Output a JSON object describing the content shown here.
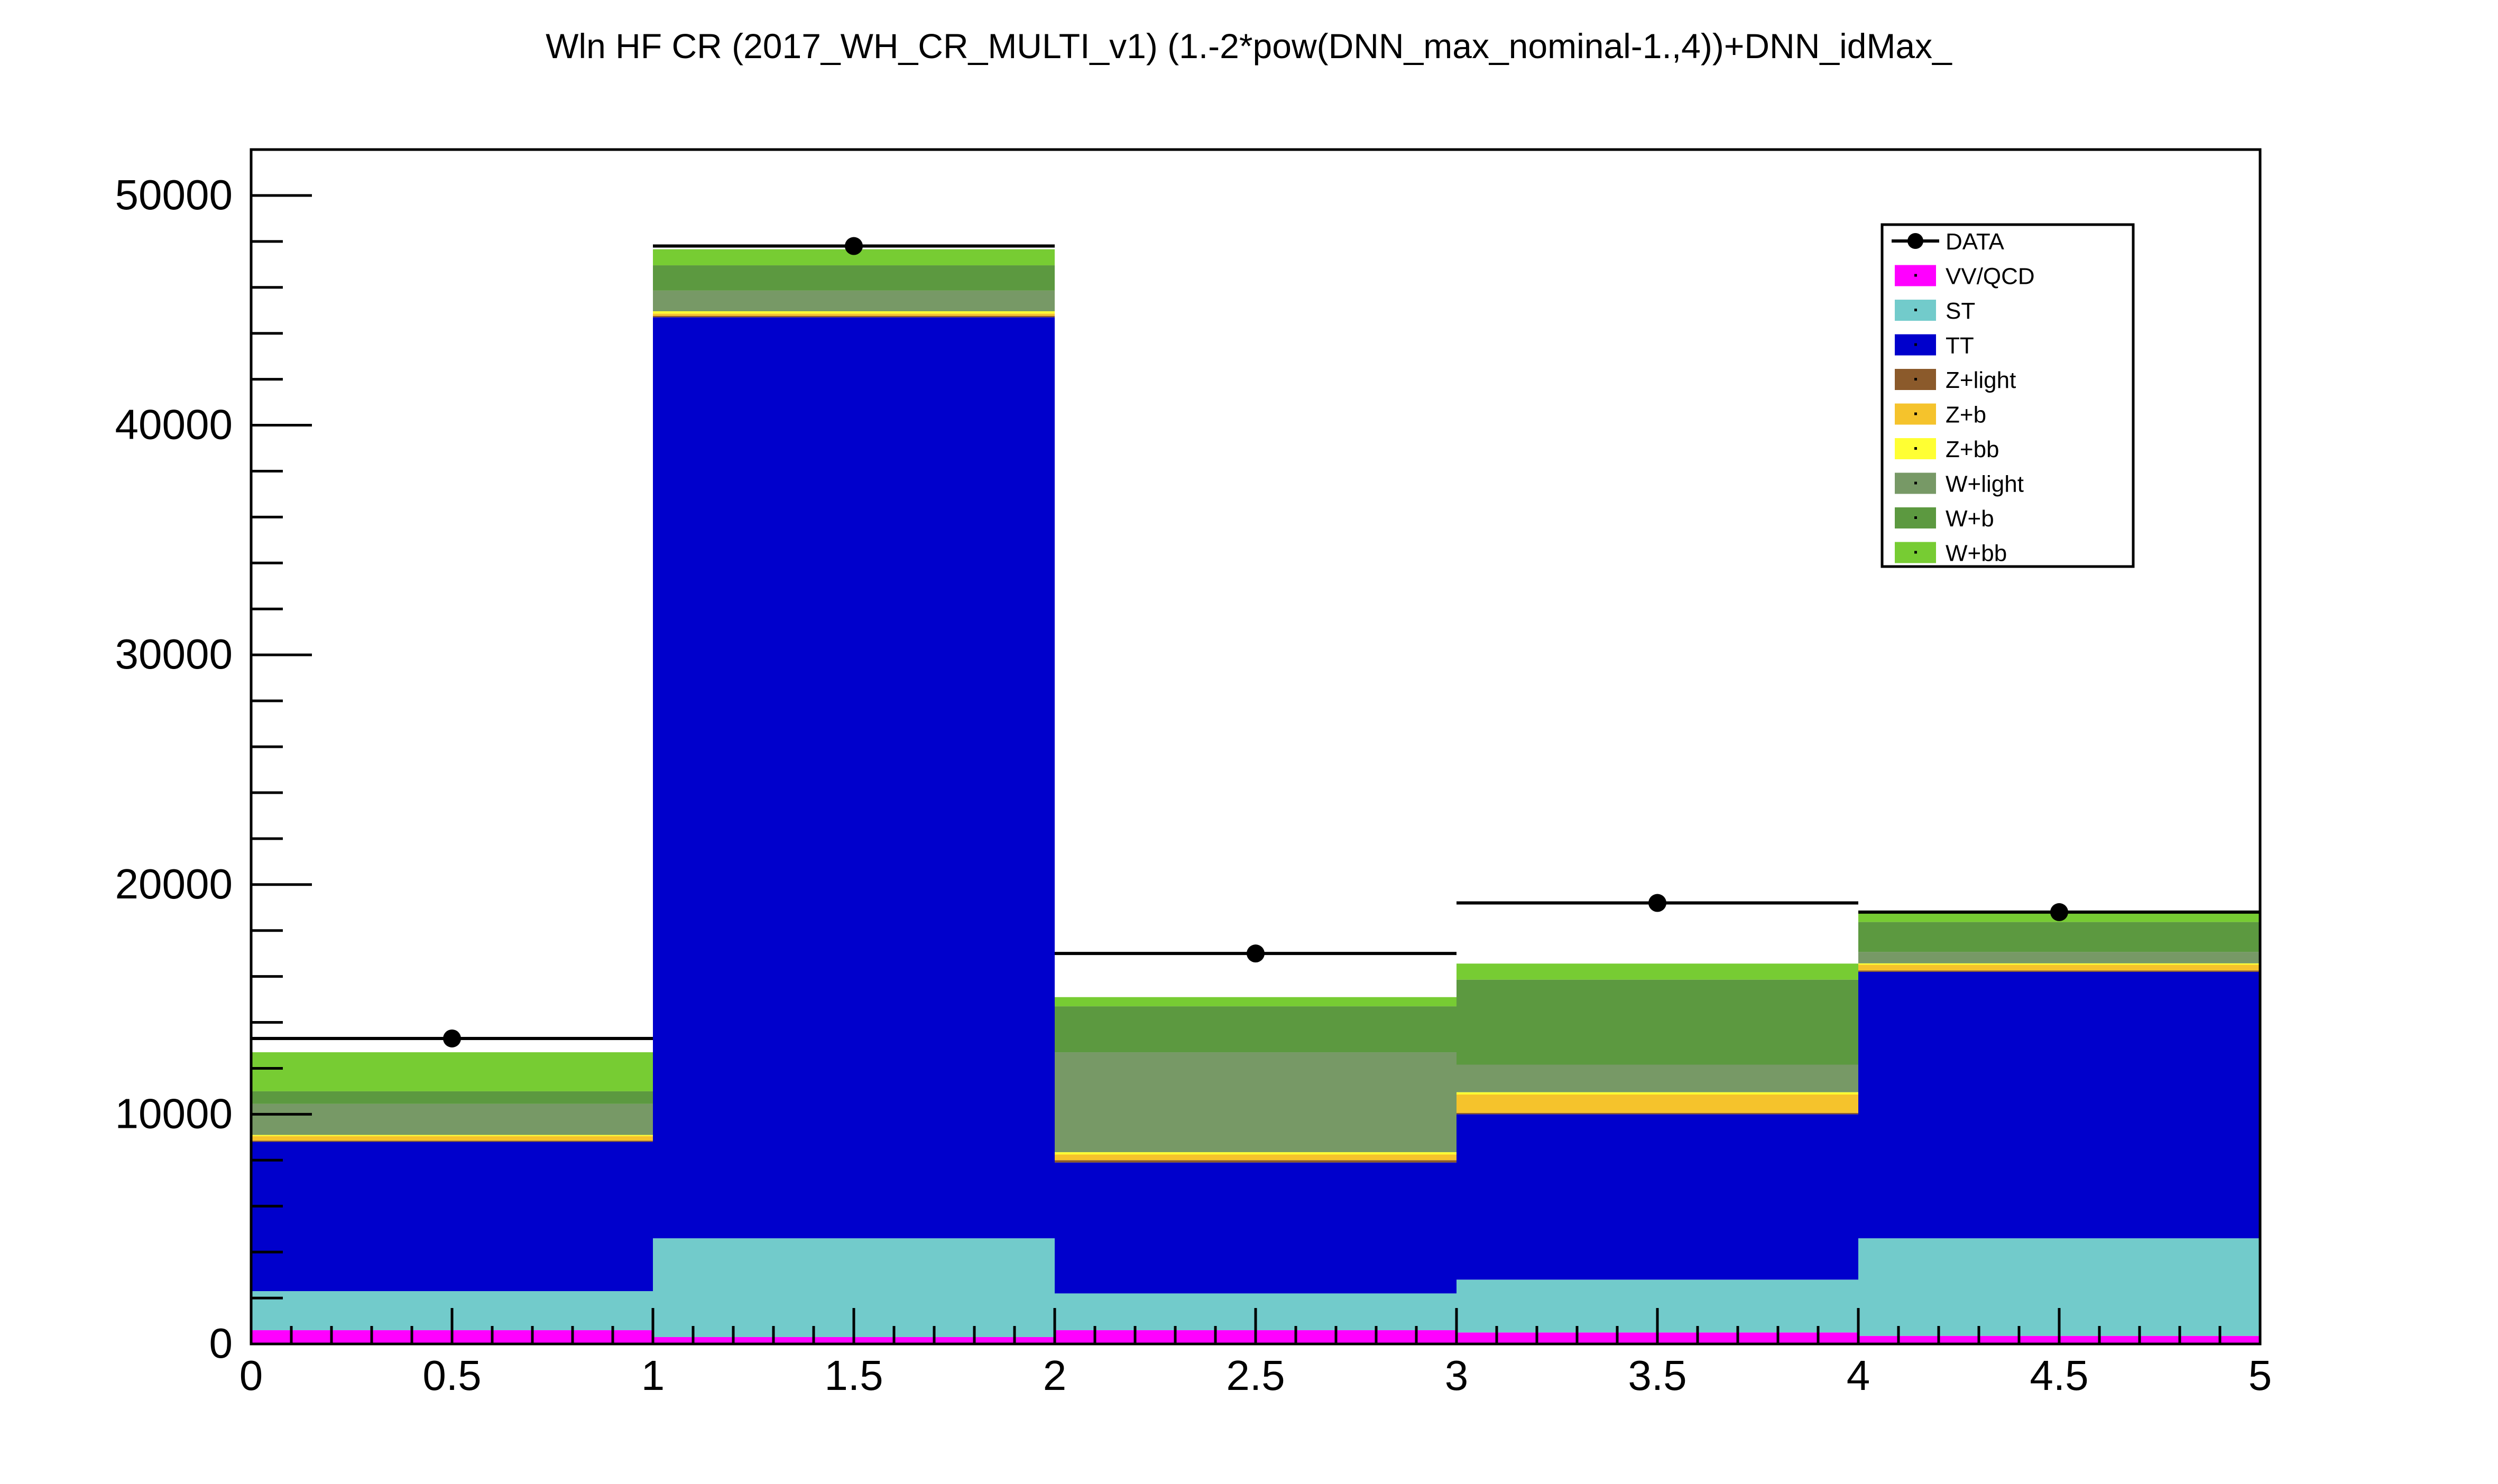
{
  "chart_data": {
    "type": "bar",
    "stacked": true,
    "title": "Wln HF CR (2017_WH_CR_MULTI_v1)  (1.-2*pow(DNN_max_nominal-1.,4))+DNN_idMax_",
    "xlabel": "",
    "ylabel": "",
    "xlim": [
      0,
      5
    ],
    "ylim": [
      0,
      52000
    ],
    "x_ticks": [
      "0",
      "0.5",
      "1",
      "1.5",
      "2",
      "2.5",
      "3",
      "3.5",
      "4",
      "4.5",
      "5"
    ],
    "y_ticks": [
      "0",
      "10000",
      "20000",
      "30000",
      "40000",
      "50000"
    ],
    "grid": false,
    "legend_position": "top-right",
    "bin_edges": [
      0,
      1,
      2,
      3,
      4,
      5
    ],
    "series": [
      {
        "name": "VV/QCD",
        "color": "#ff00ff",
        "values": [
          600,
          300,
          600,
          500,
          350
        ]
      },
      {
        "name": "ST",
        "color": "#72cbcb",
        "values": [
          1700,
          4300,
          1600,
          2300,
          4250
        ]
      },
      {
        "name": "TT",
        "color": "#0000cc",
        "values": [
          6500,
          40100,
          5700,
          7200,
          11600
        ]
      },
      {
        "name": "Z+light",
        "color": "#8b5a2b",
        "values": [
          50,
          60,
          100,
          60,
          60
        ]
      },
      {
        "name": "Z+b",
        "color": "#f5c32c",
        "values": [
          200,
          100,
          250,
          800,
          250
        ]
      },
      {
        "name": "Z+bb",
        "color": "#ffff33",
        "values": [
          50,
          100,
          100,
          100,
          60
        ]
      },
      {
        "name": "W+light",
        "color": "#779966",
        "values": [
          1350,
          900,
          4350,
          1200,
          500
        ]
      },
      {
        "name": "W+b",
        "color": "#5c9940",
        "values": [
          550,
          1100,
          2000,
          3700,
          1300
        ]
      },
      {
        "name": "W+bb",
        "color": "#77cc33",
        "values": [
          1700,
          700,
          400,
          700,
          500
        ]
      }
    ],
    "data": {
      "name": "DATA",
      "color": "#000000",
      "x": [
        0.5,
        1.5,
        2.5,
        3.5,
        4.5
      ],
      "y": [
        13300,
        47800,
        17000,
        19200,
        18800
      ]
    }
  }
}
